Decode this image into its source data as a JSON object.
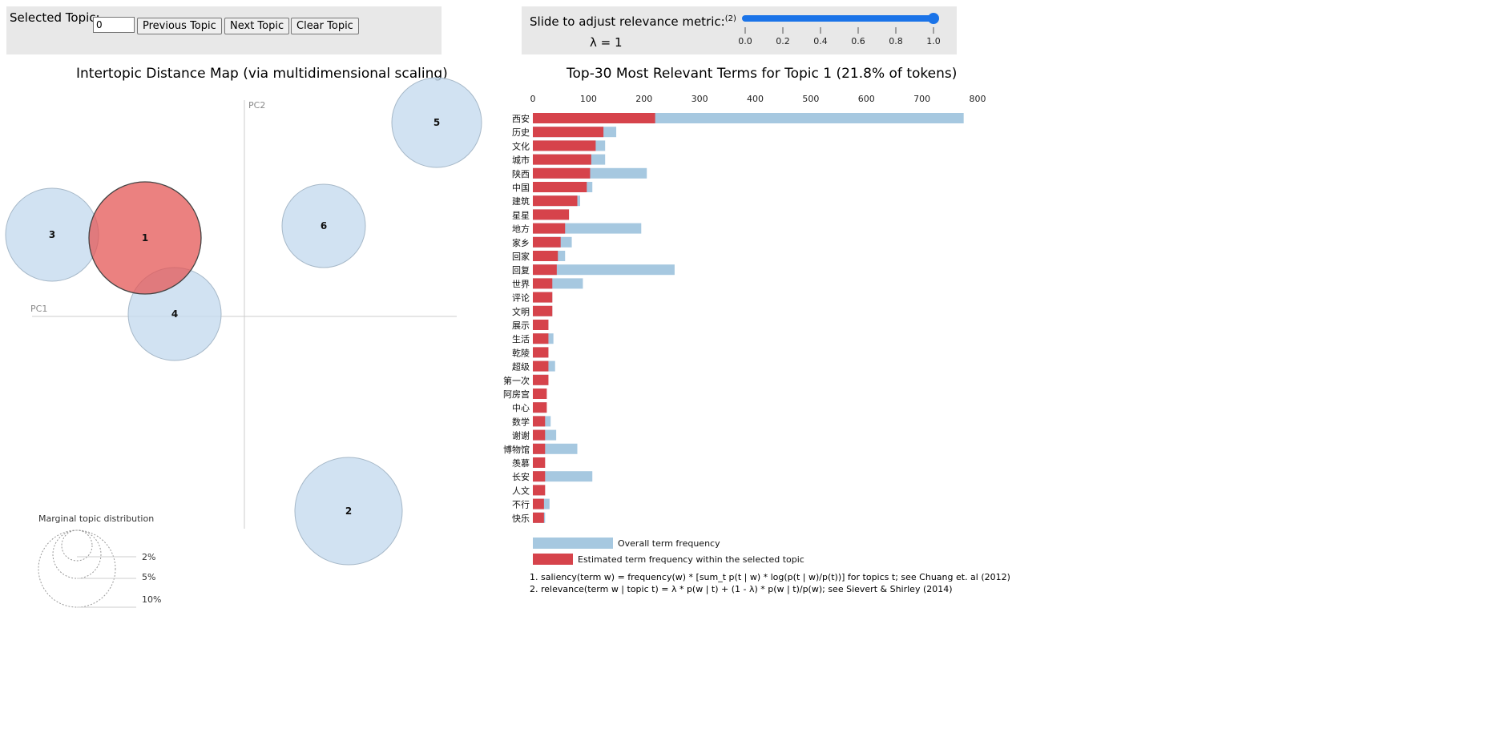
{
  "controls": {
    "selected_topic_label": "Selected Topic:",
    "selected_topic_value": "0",
    "prev_label": "Previous Topic",
    "next_label": "Next Topic",
    "clear_label": "Clear Topic",
    "slider_label": "Slide to adjust relevance metric:",
    "slider_sup": "(2)",
    "lambda_text": "λ = 1",
    "lambda_value": 1.0,
    "slider_ticks": [
      "0.0",
      "0.2",
      "0.4",
      "0.6",
      "0.8",
      "1.0"
    ],
    "accent_color": "#1a73e8"
  },
  "map": {
    "title": "Intertopic Distance Map (via multidimensional scaling)",
    "pc1_label": "PC1",
    "pc2_label": "PC2",
    "topics": [
      {
        "id": "1",
        "selected": true
      },
      {
        "id": "2",
        "selected": false
      },
      {
        "id": "3",
        "selected": false
      },
      {
        "id": "4",
        "selected": false
      },
      {
        "id": "5",
        "selected": false
      },
      {
        "id": "6",
        "selected": false
      }
    ],
    "selected_color": "#e45756",
    "default_color": "#c6dbef",
    "legend_title": "Marginal topic distribution",
    "legend_items": [
      "2%",
      "5%",
      "10%"
    ]
  },
  "chart_data": {
    "type": "bar",
    "title": "Top-30 Most Relevant Terms for Topic 1 (21.8% of tokens)",
    "xlim": [
      0,
      800
    ],
    "x_ticks": [
      0,
      100,
      200,
      300,
      400,
      500,
      600,
      700,
      800
    ],
    "categories": [
      "西安",
      "历史",
      "文化",
      "城市",
      "陕西",
      "中国",
      "建筑",
      "星星",
      "地方",
      "家乡",
      "回家",
      "回复",
      "世界",
      "评论",
      "文明",
      "展示",
      "生活",
      "乾陵",
      "超级",
      "第一次",
      "阿房宫",
      "中心",
      "数学",
      "谢谢",
      "博物馆",
      "羡慕",
      "长安",
      "人文",
      "不行",
      "快乐"
    ],
    "series": [
      {
        "name": "Overall term frequency",
        "color": "#a6c8e0",
        "values": [
          775,
          150,
          130,
          130,
          205,
          107,
          85,
          65,
          195,
          70,
          58,
          255,
          90,
          35,
          35,
          28,
          37,
          28,
          40,
          28,
          25,
          25,
          32,
          42,
          80,
          22,
          107,
          22,
          30,
          22
        ]
      },
      {
        "name": "Estimated term frequency within the selected topic",
        "color": "#d6434b",
        "values": [
          220,
          127,
          113,
          105,
          103,
          97,
          80,
          65,
          58,
          50,
          45,
          43,
          35,
          35,
          35,
          28,
          28,
          28,
          28,
          28,
          25,
          25,
          22,
          22,
          22,
          22,
          22,
          22,
          20,
          20
        ]
      }
    ]
  },
  "footnotes": [
    "1. saliency(term w) = frequency(w) * [sum_t p(t | w) * log(p(t | w)/p(t))] for topics t; see Chuang et. al (2012)",
    "2. relevance(term w | topic t) = λ * p(w | t) + (1 - λ) * p(w | t)/p(w); see Sievert & Shirley (2014)"
  ]
}
